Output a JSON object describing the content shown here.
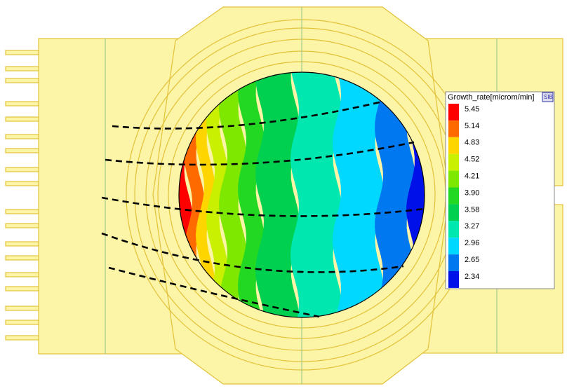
{
  "legend": {
    "title": "Growth_rate[microm/min]",
    "button": "SIB",
    "levels": [
      {
        "label": "5.45",
        "color": "#ff0000"
      },
      {
        "label": "5.14",
        "color": "#ff6a00"
      },
      {
        "label": "4.83",
        "color": "#ffd500"
      },
      {
        "label": "4.52",
        "color": "#c8f000"
      },
      {
        "label": "4.21",
        "color": "#7ee800"
      },
      {
        "label": "3.90",
        "color": "#22d822"
      },
      {
        "label": "3.58",
        "color": "#00d050"
      },
      {
        "label": "3.27",
        "color": "#00e8b0"
      },
      {
        "label": "2.96",
        "color": "#00d8ff"
      },
      {
        "label": "2.65",
        "color": "#0078f0"
      },
      {
        "label": "2.34",
        "color": "#0010e8"
      }
    ]
  }
}
